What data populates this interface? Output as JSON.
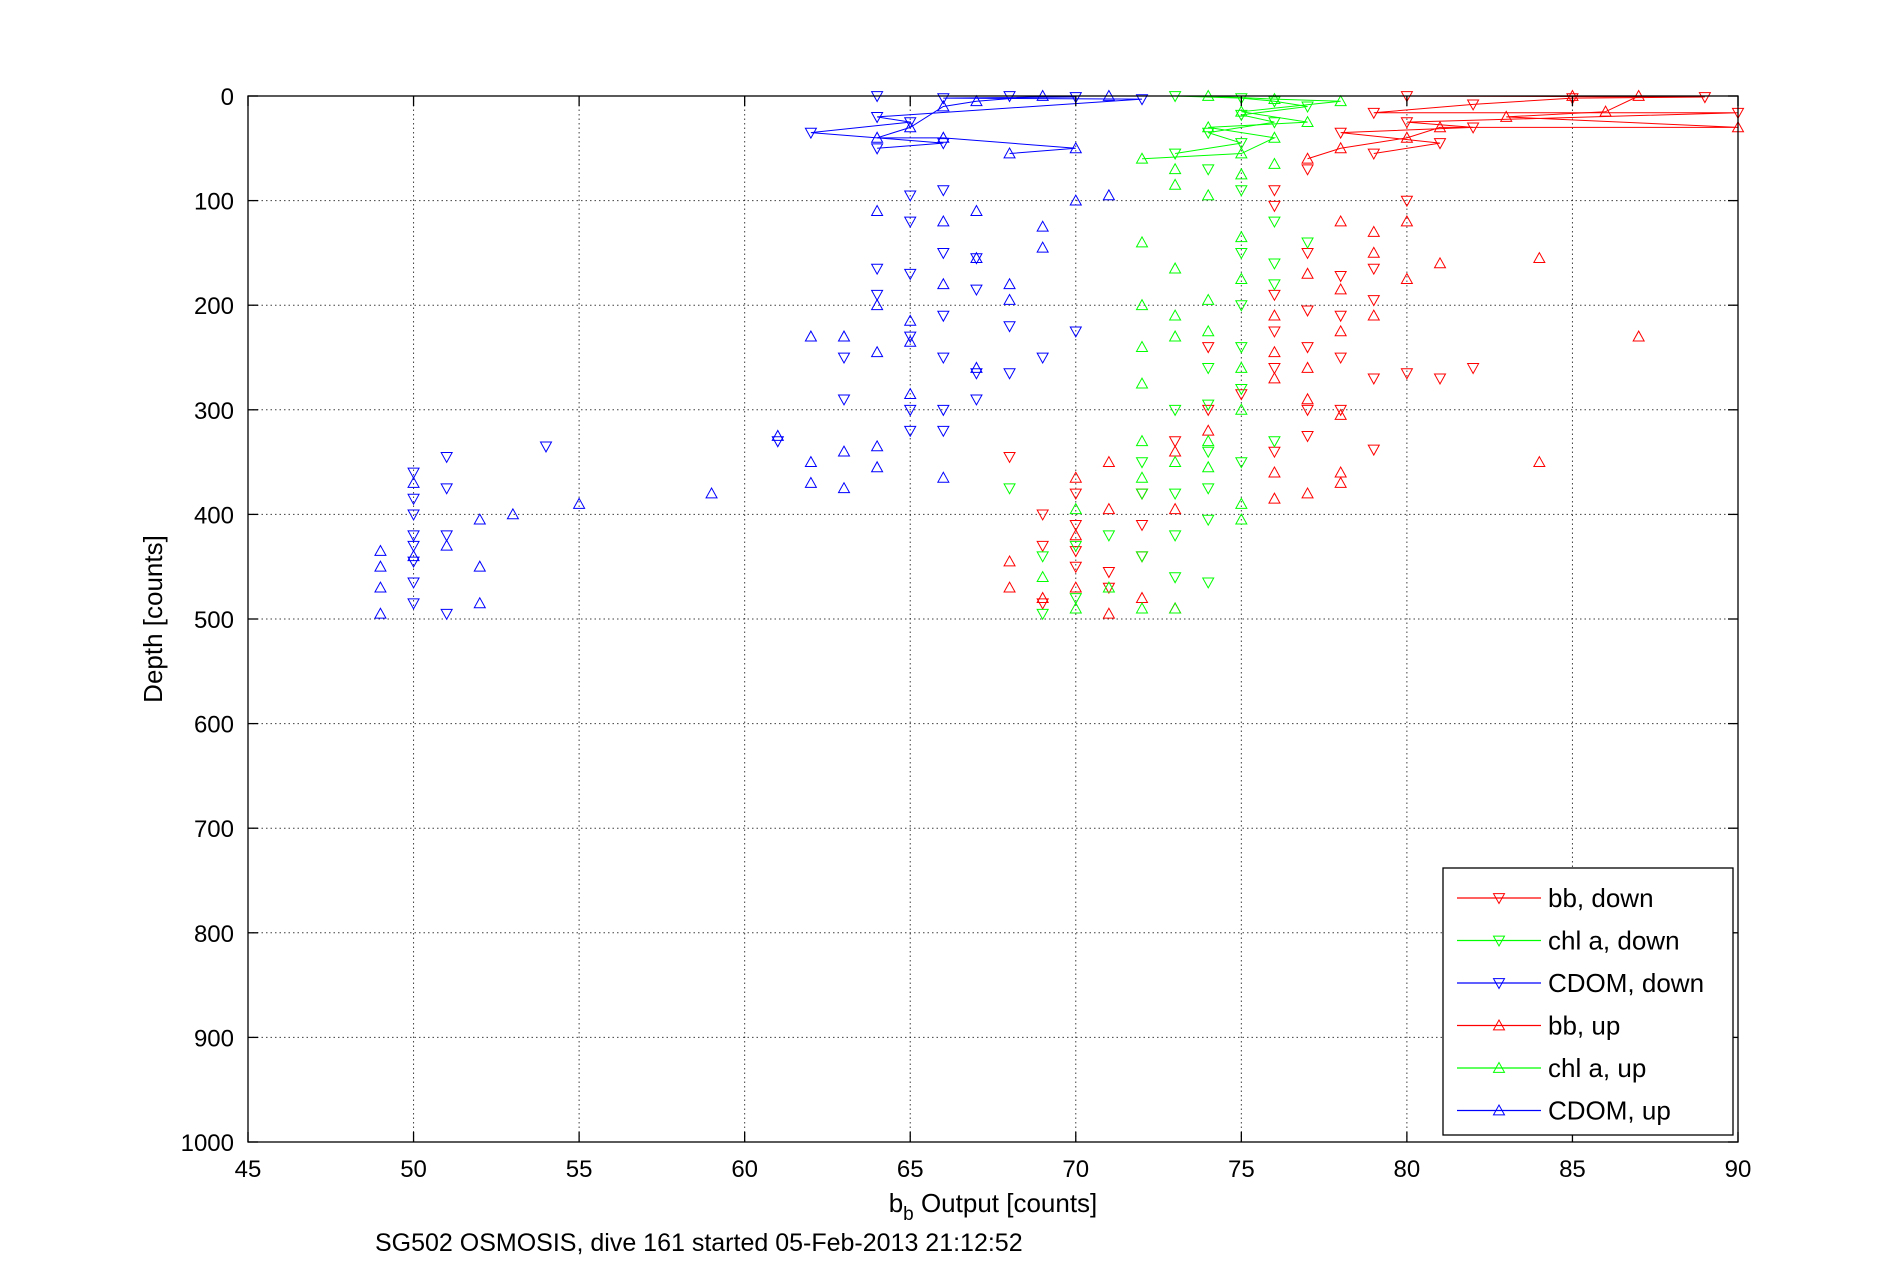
{
  "chart_data": {
    "type": "scatter",
    "title": "",
    "caption": "SG502 OSMOSIS, dive 161 started 05-Feb-2013 21:12:52",
    "xlabel_main": "b",
    "xlabel_sub": "b",
    "xlabel_rest": " Output [counts]",
    "ylabel": "Depth [counts]",
    "xlim": [
      45,
      90
    ],
    "ylim": [
      0,
      1000
    ],
    "y_reversed": true,
    "grid": true,
    "legend_position": "bottom-right",
    "x_ticks": [
      "45",
      "50",
      "55",
      "60",
      "65",
      "70",
      "75",
      "80",
      "85",
      "90"
    ],
    "y_ticks": [
      "0",
      "100",
      "200",
      "300",
      "400",
      "500",
      "600",
      "700",
      "800",
      "900",
      "1000"
    ],
    "series": [
      {
        "name": "bb, down",
        "color": "#ff0000",
        "marker": "triangle-down",
        "points": [
          [
            80,
            0
          ],
          [
            85,
            2
          ],
          [
            89,
            1
          ],
          [
            82,
            8
          ],
          [
            79,
            16
          ],
          [
            90,
            16
          ],
          [
            80,
            25
          ],
          [
            82,
            30
          ],
          [
            78,
            35
          ],
          [
            81,
            45
          ],
          [
            79,
            55
          ],
          [
            80,
            100
          ],
          [
            79,
            165
          ],
          [
            79,
            195
          ],
          [
            79,
            270
          ],
          [
            79,
            338
          ],
          [
            78,
            300
          ],
          [
            78,
            250
          ],
          [
            78,
            210
          ],
          [
            78,
            172
          ],
          [
            77,
            150
          ],
          [
            77,
            205
          ],
          [
            77,
            240
          ],
          [
            77,
            300
          ],
          [
            77,
            325
          ],
          [
            76,
            190
          ],
          [
            76,
            225
          ],
          [
            76,
            260
          ],
          [
            76,
            340
          ],
          [
            75,
            285
          ],
          [
            74,
            240
          ],
          [
            74,
            300
          ],
          [
            73,
            330
          ],
          [
            72,
            380
          ],
          [
            72,
            410
          ],
          [
            72,
            440
          ],
          [
            71,
            455
          ],
          [
            71,
            470
          ],
          [
            70,
            380
          ],
          [
            70,
            410
          ],
          [
            70,
            435
          ],
          [
            70,
            450
          ],
          [
            69,
            400
          ],
          [
            69,
            430
          ],
          [
            69,
            485
          ],
          [
            68,
            345
          ],
          [
            76,
            105
          ],
          [
            76,
            90
          ],
          [
            77,
            70
          ],
          [
            80,
            265
          ],
          [
            81,
            270
          ],
          [
            82,
            260
          ]
        ]
      },
      {
        "name": "chl a, down",
        "color": "#00ff00",
        "marker": "triangle-down",
        "points": [
          [
            73,
            0
          ],
          [
            75,
            2
          ],
          [
            76,
            5
          ],
          [
            77,
            10
          ],
          [
            75,
            18
          ],
          [
            76,
            25
          ],
          [
            74,
            35
          ],
          [
            75,
            45
          ],
          [
            73,
            55
          ],
          [
            74,
            70
          ],
          [
            75,
            90
          ],
          [
            76,
            120
          ],
          [
            76,
            160
          ],
          [
            75,
            150
          ],
          [
            75,
            200
          ],
          [
            75,
            240
          ],
          [
            75,
            280
          ],
          [
            74,
            260
          ],
          [
            74,
            295
          ],
          [
            74,
            340
          ],
          [
            74,
            375
          ],
          [
            74,
            405
          ],
          [
            73,
            300
          ],
          [
            73,
            380
          ],
          [
            73,
            420
          ],
          [
            73,
            460
          ],
          [
            72,
            440
          ],
          [
            72,
            380
          ],
          [
            72,
            350
          ],
          [
            71,
            420
          ],
          [
            70,
            480
          ],
          [
            70,
            430
          ],
          [
            69,
            495
          ],
          [
            69,
            440
          ],
          [
            68,
            375
          ],
          [
            74,
            465
          ],
          [
            75,
            350
          ],
          [
            76,
            330
          ],
          [
            77,
            140
          ],
          [
            76,
            180
          ]
        ]
      },
      {
        "name": "CDOM, down",
        "color": "#0000ff",
        "marker": "triangle-down",
        "points": [
          [
            64,
            0
          ],
          [
            66,
            2
          ],
          [
            68,
            0
          ],
          [
            70,
            1
          ],
          [
            72,
            3
          ],
          [
            62,
            35
          ],
          [
            64,
            20
          ],
          [
            65,
            25
          ],
          [
            66,
            45
          ],
          [
            64,
            50
          ],
          [
            65,
            95
          ],
          [
            65,
            120
          ],
          [
            66,
            90
          ],
          [
            66,
            150
          ],
          [
            66,
            210
          ],
          [
            66,
            250
          ],
          [
            67,
            185
          ],
          [
            67,
            155
          ],
          [
            68,
            220
          ],
          [
            68,
            265
          ],
          [
            69,
            250
          ],
          [
            70,
            225
          ],
          [
            64,
            165
          ],
          [
            64,
            190
          ],
          [
            65,
            170
          ],
          [
            65,
            230
          ],
          [
            65,
            320
          ],
          [
            65,
            300
          ],
          [
            66,
            300
          ],
          [
            66,
            320
          ],
          [
            67,
            290
          ],
          [
            67,
            265
          ],
          [
            63,
            290
          ],
          [
            63,
            250
          ],
          [
            61,
            330
          ],
          [
            54,
            335
          ],
          [
            51,
            345
          ],
          [
            51,
            375
          ],
          [
            51,
            420
          ],
          [
            51,
            495
          ],
          [
            50,
            360
          ],
          [
            50,
            385
          ],
          [
            50,
            420
          ],
          [
            50,
            445
          ],
          [
            50,
            465
          ],
          [
            50,
            485
          ],
          [
            50,
            400
          ],
          [
            50,
            430
          ]
        ]
      },
      {
        "name": "bb, up",
        "color": "#ff0000",
        "marker": "triangle-up",
        "points": [
          [
            85,
            0
          ],
          [
            87,
            0
          ],
          [
            90,
            30
          ],
          [
            86,
            15
          ],
          [
            83,
            20
          ],
          [
            81,
            30
          ],
          [
            80,
            40
          ],
          [
            78,
            50
          ],
          [
            77,
            60
          ],
          [
            78,
            120
          ],
          [
            77,
            170
          ],
          [
            78,
            185
          ],
          [
            78,
            225
          ],
          [
            77,
            260
          ],
          [
            77,
            290
          ],
          [
            78,
            305
          ],
          [
            78,
            360
          ],
          [
            78,
            370
          ],
          [
            77,
            380
          ],
          [
            76,
            385
          ],
          [
            76,
            360
          ],
          [
            76,
            270
          ],
          [
            76,
            245
          ],
          [
            76,
            210
          ],
          [
            74,
            320
          ],
          [
            73,
            340
          ],
          [
            73,
            395
          ],
          [
            73,
            490
          ],
          [
            72,
            480
          ],
          [
            71,
            495
          ],
          [
            71,
            395
          ],
          [
            71,
            350
          ],
          [
            70,
            365
          ],
          [
            70,
            420
          ],
          [
            70,
            470
          ],
          [
            69,
            480
          ],
          [
            68,
            445
          ],
          [
            68,
            470
          ],
          [
            79,
            130
          ],
          [
            79,
            150
          ],
          [
            79,
            210
          ],
          [
            81,
            160
          ],
          [
            84,
            155
          ],
          [
            87,
            230
          ],
          [
            84,
            350
          ],
          [
            80,
            175
          ],
          [
            80,
            120
          ]
        ]
      },
      {
        "name": "chl a, up",
        "color": "#00ff00",
        "marker": "triangle-up",
        "points": [
          [
            74,
            0
          ],
          [
            76,
            3
          ],
          [
            78,
            5
          ],
          [
            75,
            15
          ],
          [
            77,
            25
          ],
          [
            74,
            30
          ],
          [
            76,
            40
          ],
          [
            75,
            55
          ],
          [
            73,
            70
          ],
          [
            72,
            60
          ],
          [
            73,
            85
          ],
          [
            74,
            95
          ],
          [
            75,
            75
          ],
          [
            76,
            65
          ],
          [
            72,
            140
          ],
          [
            72,
            200
          ],
          [
            72,
            240
          ],
          [
            72,
            275
          ],
          [
            73,
            230
          ],
          [
            73,
            210
          ],
          [
            73,
            165
          ],
          [
            74,
            195
          ],
          [
            74,
            225
          ],
          [
            75,
            175
          ],
          [
            75,
            135
          ],
          [
            75,
            260
          ],
          [
            75,
            300
          ],
          [
            74,
            330
          ],
          [
            74,
            355
          ],
          [
            73,
            350
          ],
          [
            72,
            330
          ],
          [
            72,
            365
          ],
          [
            73,
            490
          ],
          [
            72,
            490
          ],
          [
            70,
            490
          ],
          [
            69,
            460
          ],
          [
            70,
            395
          ],
          [
            71,
            470
          ],
          [
            75,
            390
          ],
          [
            75,
            405
          ]
        ]
      },
      {
        "name": "CDOM, up",
        "color": "#0000ff",
        "marker": "triangle-up",
        "points": [
          [
            71,
            0
          ],
          [
            69,
            0
          ],
          [
            67,
            5
          ],
          [
            66,
            10
          ],
          [
            65,
            30
          ],
          [
            64,
            40
          ],
          [
            66,
            40
          ],
          [
            68,
            55
          ],
          [
            70,
            50
          ],
          [
            71,
            95
          ],
          [
            70,
            100
          ],
          [
            69,
            125
          ],
          [
            69,
            145
          ],
          [
            68,
            180
          ],
          [
            68,
            195
          ],
          [
            67,
            110
          ],
          [
            67,
            155
          ],
          [
            66,
            180
          ],
          [
            66,
            120
          ],
          [
            65,
            215
          ],
          [
            65,
            235
          ],
          [
            65,
            285
          ],
          [
            64,
            110
          ],
          [
            64,
            200
          ],
          [
            64,
            245
          ],
          [
            64,
            335
          ],
          [
            64,
            355
          ],
          [
            63,
            375
          ],
          [
            63,
            340
          ],
          [
            63,
            230
          ],
          [
            62,
            230
          ],
          [
            62,
            350
          ],
          [
            62,
            370
          ],
          [
            61,
            325
          ],
          [
            59,
            380
          ],
          [
            55,
            390
          ],
          [
            53,
            400
          ],
          [
            52,
            405
          ],
          [
            52,
            450
          ],
          [
            52,
            485
          ],
          [
            51,
            430
          ],
          [
            50,
            370
          ],
          [
            50,
            440
          ],
          [
            49,
            435
          ],
          [
            49,
            450
          ],
          [
            49,
            470
          ],
          [
            49,
            495
          ],
          [
            66,
            365
          ],
          [
            67,
            260
          ]
        ]
      }
    ]
  }
}
